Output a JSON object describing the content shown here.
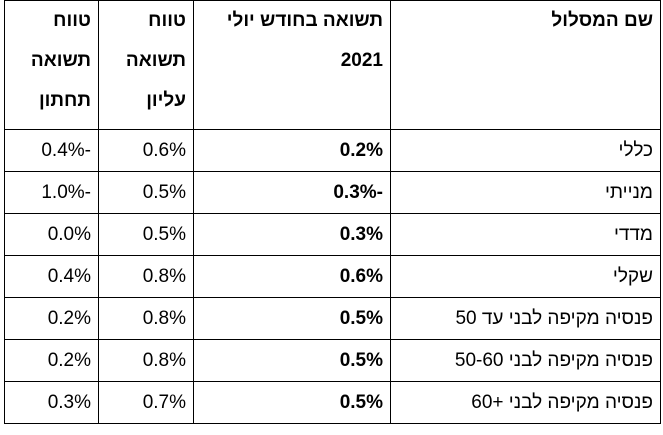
{
  "table": {
    "header": [
      "שם המסלול",
      "תשואה בחודש יולי 2021",
      "טווח תשואה עליון",
      "טווח תשואה תחתון"
    ],
    "rows": [
      [
        "כללי",
        "0.2%",
        "0.6%",
        "-0.4%"
      ],
      [
        "מנייתי",
        "-0.3%",
        "0.5%",
        "-1.0%"
      ],
      [
        "מדדי",
        "0.3%",
        "0.5%",
        "0.0%"
      ],
      [
        "שקלי",
        "0.6%",
        "0.8%",
        "0.4%"
      ],
      [
        "פנסיה מקיפה לבני עד 50",
        "0.5%",
        "0.8%",
        "0.2%"
      ],
      [
        "פנסיה מקיפה לבני 50-60",
        "0.5%",
        "0.8%",
        "0.2%"
      ],
      [
        "פנסיה מקיפה לבני +60",
        "0.5%",
        "0.7%",
        "0.3%"
      ]
    ]
  }
}
